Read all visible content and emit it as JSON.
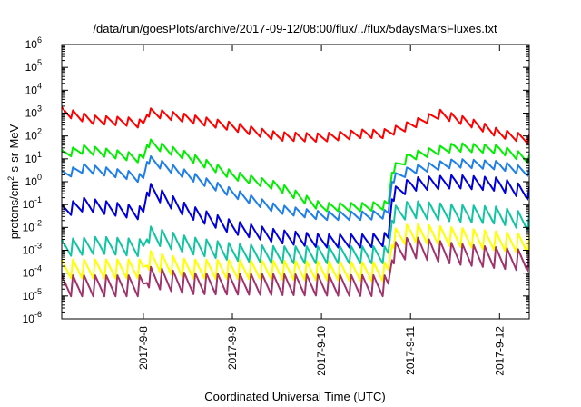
{
  "chart_data": {
    "type": "line",
    "title": "/data/run/goesPlots/archive/2017-09-12/08:00/flux/../flux/5daysMarsFluxes.txt",
    "xlabel": "Coordinated Universal Time (UTC)",
    "ylabel": "protons/cm²-s-sr-MeV",
    "y_scale": "log",
    "ylim": [
      1e-06,
      1000000.0
    ],
    "xlim": [
      "2017-09-07 02:00",
      "2017-09-12 08:00"
    ],
    "x_ticks": [
      "2017-9-8",
      "2017-9-9",
      "2017-9-10",
      "2017-9-11",
      "2017-9-12"
    ],
    "y_ticks": [
      {
        "mant": "10",
        "exp": "-6"
      },
      {
        "mant": "10",
        "exp": "-5"
      },
      {
        "mant": "10",
        "exp": "-4"
      },
      {
        "mant": "10",
        "exp": "-3"
      },
      {
        "mant": "10",
        "exp": "-2"
      },
      {
        "mant": "10",
        "exp": "-1"
      },
      {
        "mant": "10",
        "exp": "0"
      },
      {
        "mant": "10",
        "exp": "1"
      },
      {
        "mant": "10",
        "exp": "2"
      },
      {
        "mant": "10",
        "exp": "3"
      },
      {
        "mant": "10",
        "exp": "4"
      },
      {
        "mant": "10",
        "exp": "5"
      },
      {
        "mant": "10",
        "exp": "6"
      }
    ],
    "grid": false,
    "legend": "none",
    "sawtooth_period_hours": 3,
    "series": [
      {
        "color": "#ff0000",
        "amplitude_decades": 0.45,
        "envelope": [
          [
            "2017-09-07 02:00",
            1800
          ],
          [
            "2017-09-07 10:00",
            800
          ],
          [
            "2017-09-07 20:00",
            650
          ],
          [
            "2017-09-08 00:00",
            500
          ],
          [
            "2017-09-08 01:00",
            1700
          ],
          [
            "2017-09-08 12:00",
            900
          ],
          [
            "2017-09-09 00:00",
            400
          ],
          [
            "2017-09-09 12:00",
            150
          ],
          [
            "2017-09-10 00:00",
            130
          ],
          [
            "2017-09-10 12:00",
            200
          ],
          [
            "2017-09-10 16:00",
            180
          ],
          [
            "2017-09-10 22:00",
            350
          ],
          [
            "2017-09-11 08:00",
            1400
          ],
          [
            "2017-09-11 16:00",
            600
          ],
          [
            "2017-09-12 00:00",
            200
          ],
          [
            "2017-09-12 08:00",
            110
          ]
        ]
      },
      {
        "color": "#00ee00",
        "amplitude_decades": 0.45,
        "envelope": [
          [
            "2017-09-07 02:00",
            25
          ],
          [
            "2017-09-07 08:00",
            40
          ],
          [
            "2017-09-07 20:00",
            20
          ],
          [
            "2017-09-08 00:00",
            15
          ],
          [
            "2017-09-08 01:00",
            80
          ],
          [
            "2017-09-08 12:00",
            20
          ],
          [
            "2017-09-09 00:00",
            3
          ],
          [
            "2017-09-09 12:00",
            1
          ],
          [
            "2017-09-10 00:00",
            0.12
          ],
          [
            "2017-09-10 12:00",
            0.12
          ],
          [
            "2017-09-10 18:00",
            0.15
          ],
          [
            "2017-09-10 19:00",
            5
          ],
          [
            "2017-09-11 00:00",
            20
          ],
          [
            "2017-09-11 12:00",
            50
          ],
          [
            "2017-09-12 00:00",
            40
          ],
          [
            "2017-09-12 08:00",
            15
          ]
        ]
      },
      {
        "color": "#1e7fe8",
        "amplitude_decades": 0.45,
        "envelope": [
          [
            "2017-09-07 02:00",
            3
          ],
          [
            "2017-09-07 08:00",
            6
          ],
          [
            "2017-09-07 20:00",
            3
          ],
          [
            "2017-09-08 00:00",
            2
          ],
          [
            "2017-09-08 01:00",
            15
          ],
          [
            "2017-09-08 12:00",
            3
          ],
          [
            "2017-09-09 00:00",
            0.5
          ],
          [
            "2017-09-09 12:00",
            0.1
          ],
          [
            "2017-09-10 00:00",
            0.05
          ],
          [
            "2017-09-10 12:00",
            0.05
          ],
          [
            "2017-09-10 18:00",
            0.06
          ],
          [
            "2017-09-10 19:00",
            2
          ],
          [
            "2017-09-11 00:00",
            5
          ],
          [
            "2017-09-11 12:00",
            10
          ],
          [
            "2017-09-12 00:00",
            8
          ],
          [
            "2017-09-12 08:00",
            4
          ]
        ]
      },
      {
        "color": "#0000dd",
        "amplitude_decades": 0.7,
        "envelope": [
          [
            "2017-09-07 02:00",
            0.1
          ],
          [
            "2017-09-07 08:00",
            0.2
          ],
          [
            "2017-09-07 20:00",
            0.1
          ],
          [
            "2017-09-08 00:00",
            0.08
          ],
          [
            "2017-09-08 01:00",
            1
          ],
          [
            "2017-09-08 12:00",
            0.1
          ],
          [
            "2017-09-09 00:00",
            0.02
          ],
          [
            "2017-09-09 12:00",
            0.008
          ],
          [
            "2017-09-10 00:00",
            0.005
          ],
          [
            "2017-09-10 12:00",
            0.005
          ],
          [
            "2017-09-10 18:00",
            0.006
          ],
          [
            "2017-09-10 19:00",
            0.5
          ],
          [
            "2017-09-11 00:00",
            1.5
          ],
          [
            "2017-09-11 12:00",
            2
          ],
          [
            "2017-09-12 00:00",
            1.5
          ],
          [
            "2017-09-12 08:00",
            0.6
          ]
        ]
      },
      {
        "color": "#11c4a2",
        "amplitude_decades": 0.9,
        "envelope": [
          [
            "2017-09-07 02:00",
            0.003
          ],
          [
            "2017-09-07 12:00",
            0.004
          ],
          [
            "2017-09-08 00:00",
            0.003
          ],
          [
            "2017-09-08 01:00",
            0.012
          ],
          [
            "2017-09-08 12:00",
            0.004
          ],
          [
            "2017-09-09 00:00",
            0.002
          ],
          [
            "2017-09-09 12:00",
            0.0015
          ],
          [
            "2017-09-10 00:00",
            0.0015
          ],
          [
            "2017-09-10 12:00",
            0.0015
          ],
          [
            "2017-09-10 18:00",
            0.0015
          ],
          [
            "2017-09-10 19:00",
            0.08
          ],
          [
            "2017-09-11 00:00",
            0.15
          ],
          [
            "2017-09-11 12:00",
            0.1
          ],
          [
            "2017-09-12 00:00",
            0.08
          ],
          [
            "2017-09-12 08:00",
            0.04
          ]
        ]
      },
      {
        "color": "#ffff00",
        "amplitude_decades": 1.0,
        "envelope": [
          [
            "2017-09-07 02:00",
            0.0004
          ],
          [
            "2017-09-08 00:00",
            0.0004
          ],
          [
            "2017-09-08 01:00",
            0.001
          ],
          [
            "2017-09-08 12:00",
            0.0004
          ],
          [
            "2017-09-10 18:00",
            0.0003
          ],
          [
            "2017-09-10 19:00",
            0.008
          ],
          [
            "2017-09-11 00:00",
            0.015
          ],
          [
            "2017-09-11 12:00",
            0.01
          ],
          [
            "2017-09-12 08:00",
            0.005
          ]
        ]
      },
      {
        "color": "#a0336b",
        "amplitude_decades": 1.1,
        "envelope": [
          [
            "2017-09-07 02:00",
            8e-05
          ],
          [
            "2017-09-08 00:00",
            8e-05
          ],
          [
            "2017-09-08 01:00",
            0.0002
          ],
          [
            "2017-09-08 12:00",
            0.0001
          ],
          [
            "2017-09-10 18:00",
            8e-05
          ],
          [
            "2017-09-10 19:00",
            0.002
          ],
          [
            "2017-09-11 00:00",
            0.004
          ],
          [
            "2017-09-11 12:00",
            0.002
          ],
          [
            "2017-09-12 08:00",
            0.001
          ]
        ]
      }
    ]
  }
}
